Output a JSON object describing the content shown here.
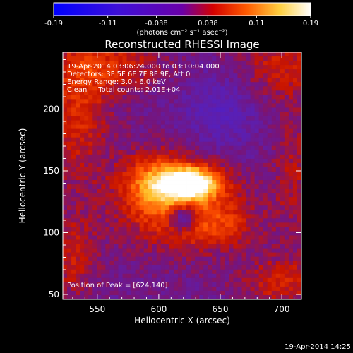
{
  "chart_data": {
    "type": "heatmap",
    "title": "Reconstructed RHESSI Image",
    "xlabel": "Heliocentric X (arcsec)",
    "ylabel": "Heliocentric Y (arcsec)",
    "xlim": [
      522,
      716
    ],
    "ylim": [
      46,
      246
    ],
    "xticks": [
      550,
      600,
      650,
      700
    ],
    "yticks": [
      50,
      100,
      150,
      200
    ],
    "xtick_labels": [
      "550",
      "600",
      "650",
      "700"
    ],
    "ytick_labels": [
      "50",
      "100",
      "150",
      "200"
    ],
    "annotations": [
      "19-Apr-2014 03:06:24.000 to 03:10:04.000",
      "Detectors: 3F 5F 6F 7F 8F 9F, Att 0",
      "Energy Range: 3.0 - 6.0 keV",
      "Clean     Total counts: 2.01E+04"
    ],
    "peak_label": "Position of Peak = [624,140]",
    "peak": [
      624,
      140
    ],
    "colorbar": {
      "range": [
        -0.19,
        0.19
      ],
      "tick_values": [
        -0.19,
        -0.11,
        -0.038,
        0.038,
        0.11,
        0.19
      ],
      "tick_labels": [
        "-0.19",
        "-0.11",
        "-0.038",
        "0.038",
        "0.11",
        "0.19"
      ],
      "unit_label": "(photons cm⁻² s⁻¹ asec⁻²)"
    },
    "timestamp": "19-Apr-2014 14:25",
    "colors": {
      "background": "#000000",
      "negative": "#0000ff",
      "peak": "#ffffff",
      "positive": "#ff4000"
    }
  }
}
